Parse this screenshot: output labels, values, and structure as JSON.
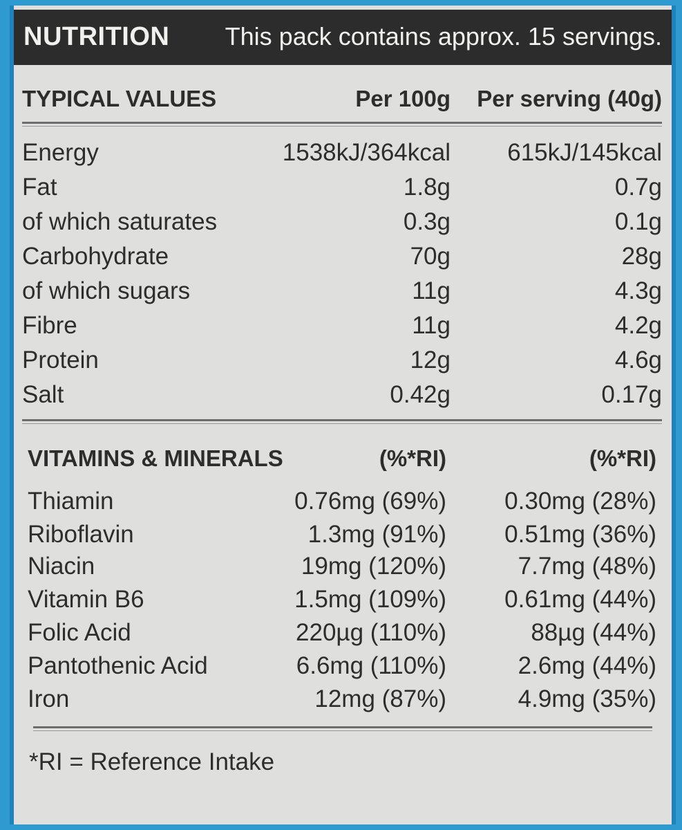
{
  "header": {
    "title": "NUTRITION",
    "note": "This pack contains approx. 15 servings."
  },
  "typical": {
    "heading": "TYPICAL VALUES",
    "col1": "Per 100g",
    "col2": "Per serving (40g)",
    "rows": [
      {
        "label": "Energy",
        "per100": "1538kJ/364kcal",
        "perServing": "615kJ/145kcal"
      },
      {
        "label": "Fat",
        "per100": "1.8g",
        "perServing": "0.7g"
      },
      {
        "label": "of which saturates",
        "per100": "0.3g",
        "perServing": "0.1g"
      },
      {
        "label": "Carbohydrate",
        "per100": "70g",
        "perServing": "28g"
      },
      {
        "label": "of which sugars",
        "per100": "11g",
        "perServing": "4.3g"
      },
      {
        "label": "Fibre",
        "per100": "11g",
        "perServing": "4.2g"
      },
      {
        "label": "Protein",
        "per100": "12g",
        "perServing": "4.6g"
      },
      {
        "label": "Salt",
        "per100": "0.42g",
        "perServing": "0.17g"
      }
    ]
  },
  "vitamins": {
    "heading": "VITAMINS & MINERALS",
    "col1": "(%*RI)",
    "col2": "(%*RI)",
    "rows": [
      {
        "label": "Thiamin",
        "per100": "0.76mg (69%)",
        "perServing": "0.30mg (28%)"
      },
      {
        "label": "Riboflavin",
        "per100": "1.3mg (91%)",
        "perServing": "0.51mg (36%)"
      },
      {
        "label": "Niacin",
        "per100": "19mg (120%)",
        "perServing": "7.7mg (48%)"
      },
      {
        "label": "Vitamin B6",
        "per100": "1.5mg (109%)",
        "perServing": "0.61mg (44%)"
      },
      {
        "label": "Folic Acid",
        "per100": "220µg (110%)",
        "perServing": "88µg (44%)"
      },
      {
        "label": "Pantothenic Acid",
        "per100": "6.6mg (110%)",
        "perServing": "2.6mg (44%)"
      },
      {
        "label": "Iron",
        "per100": "12mg (87%)",
        "perServing": "4.9mg (35%)"
      }
    ]
  },
  "footnote": "*RI = Reference Intake"
}
